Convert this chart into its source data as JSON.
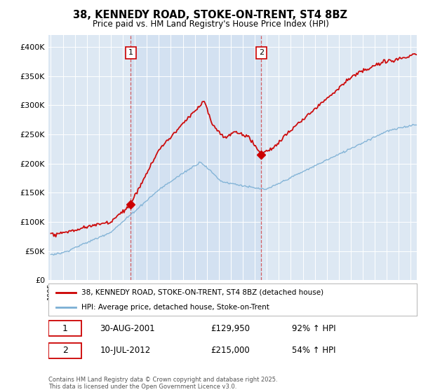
{
  "title": "38, KENNEDY ROAD, STOKE-ON-TRENT, ST4 8BZ",
  "subtitle": "Price paid vs. HM Land Registry's House Price Index (HPI)",
  "legend_line1": "38, KENNEDY ROAD, STOKE-ON-TRENT, ST4 8BZ (detached house)",
  "legend_line2": "HPI: Average price, detached house, Stoke-on-Trent",
  "red_color": "#cc0000",
  "blue_color": "#7bafd4",
  "shade_color": "#ddeeff",
  "annotation1_label": "1",
  "annotation1_date": "30-AUG-2001",
  "annotation1_price": "£129,950",
  "annotation1_hpi": "92% ↑ HPI",
  "annotation2_label": "2",
  "annotation2_date": "10-JUL-2012",
  "annotation2_price": "£215,000",
  "annotation2_hpi": "54% ↑ HPI",
  "xmin": 1994.8,
  "xmax": 2025.5,
  "ymin": 0,
  "ymax": 420000,
  "yticks": [
    0,
    50000,
    100000,
    150000,
    200000,
    250000,
    300000,
    350000,
    400000
  ],
  "ytick_labels": [
    "£0",
    "£50K",
    "£100K",
    "£150K",
    "£200K",
    "£250K",
    "£300K",
    "£350K",
    "£400K"
  ],
  "plot_bg_color": "#dde8f3",
  "footnote": "Contains HM Land Registry data © Crown copyright and database right 2025.\nThis data is licensed under the Open Government Licence v3.0.",
  "sale1_x": 2001.66,
  "sale1_y": 129950,
  "sale2_x": 2012.53,
  "sale2_y": 215000
}
